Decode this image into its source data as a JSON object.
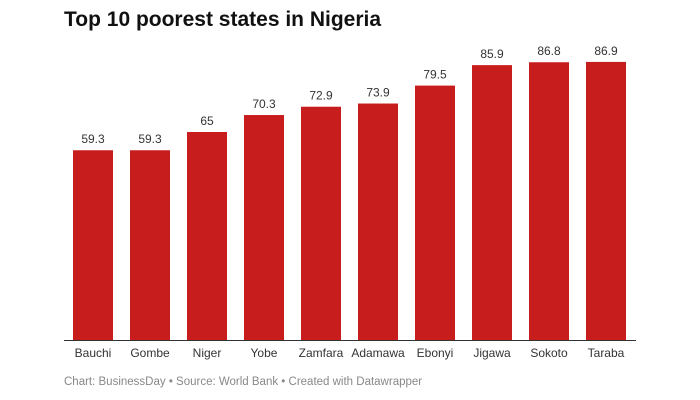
{
  "chart_data": {
    "type": "bar",
    "title": "Top 10 poorest states in Nigeria",
    "categories": [
      "Bauchi",
      "Gombe",
      "Niger",
      "Yobe",
      "Zamfara",
      "Adamawa",
      "Ebonyi",
      "Jigawa",
      "Sokoto",
      "Taraba"
    ],
    "values": [
      59.3,
      59.3,
      65,
      70.3,
      72.9,
      73.9,
      79.5,
      85.9,
      86.8,
      86.9
    ],
    "data_labels": [
      "59.3",
      "59.3",
      "65",
      "70.3",
      "72.9",
      "73.9",
      "79.5",
      "85.9",
      "86.8",
      "86.9"
    ],
    "ylim": [
      0,
      90
    ],
    "grid": false,
    "bar_color": "#c71e1d",
    "xlabel": "",
    "ylabel": ""
  },
  "footer": "Chart: BusinessDay • Source: World Bank • Created with Datawrapper"
}
